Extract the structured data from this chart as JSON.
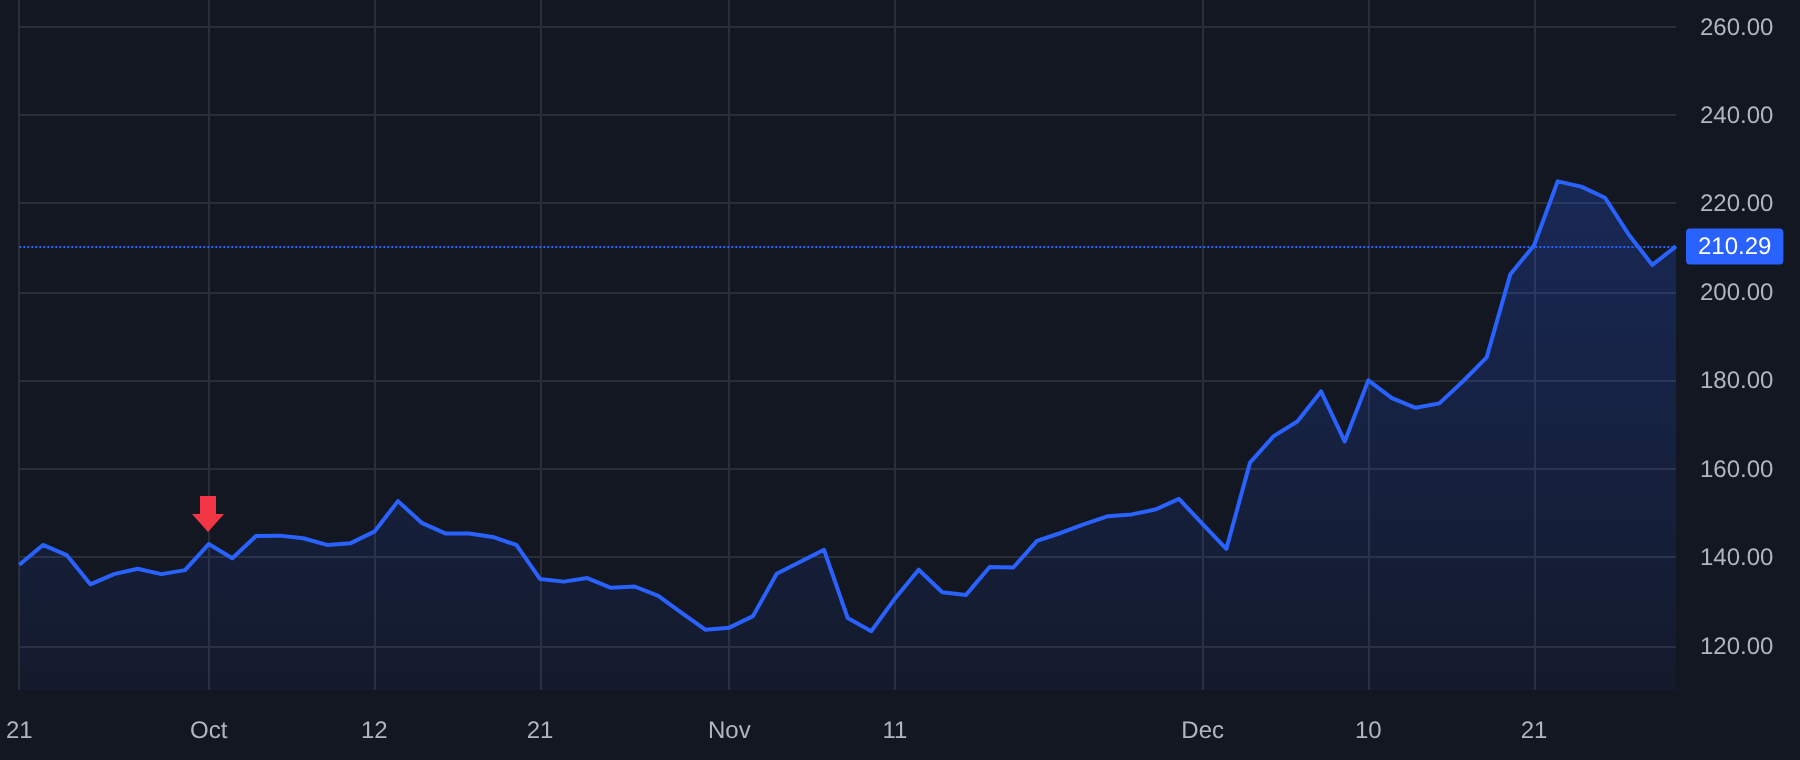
{
  "chart_data": {
    "type": "area",
    "categories": [
      "21",
      null,
      null,
      null,
      null,
      null,
      null,
      null,
      "Oct",
      null,
      null,
      null,
      null,
      null,
      null,
      "12",
      null,
      null,
      null,
      null,
      null,
      null,
      "21",
      null,
      null,
      null,
      null,
      null,
      null,
      null,
      "Nov",
      null,
      null,
      null,
      null,
      null,
      null,
      "11",
      null,
      null,
      null,
      null,
      null,
      null,
      null,
      null,
      null,
      null,
      null,
      null,
      "Dec",
      null,
      null,
      null,
      null,
      null,
      null,
      "10",
      null,
      null,
      null,
      null,
      null,
      null,
      "21",
      null,
      null,
      null,
      null,
      null,
      null
    ],
    "series": [
      {
        "color": "#2962ff",
        "values": [
          138.3,
          142.8,
          140.5,
          133.9,
          136.2,
          137.4,
          136.2,
          137.1,
          143.0,
          139.8,
          144.8,
          144.9,
          144.3,
          142.8,
          143.2,
          145.8,
          152.7,
          147.8,
          145.4,
          145.4,
          144.6,
          142.8,
          135.1,
          134.5,
          135.3,
          133.1,
          133.4,
          131.3,
          127.4,
          123.6,
          124.1,
          126.7,
          136.3,
          139.0,
          141.7,
          126.3,
          123.3,
          130.7,
          137.2,
          132.1,
          131.5,
          137.8,
          137.7,
          143.7,
          145.5,
          147.5,
          149.3,
          149.7,
          150.8,
          153.2,
          147.5,
          141.9,
          161.4,
          167.4,
          170.7,
          177.5,
          166.2,
          180.0,
          176.0,
          173.8,
          174.8,
          179.8,
          185.2,
          204.0,
          210.5,
          225.0,
          223.8,
          221.3,
          213.0,
          206.1,
          210.3
        ]
      }
    ],
    "ylim": [
      110,
      266
    ],
    "yticks": [
      {
        "value": 120,
        "label": "120.00"
      },
      {
        "value": 140,
        "label": "140.00"
      },
      {
        "value": 160,
        "label": "160.00"
      },
      {
        "value": 180,
        "label": "180.00"
      },
      {
        "value": 200,
        "label": "200.00"
      },
      {
        "value": 220,
        "label": "220.00"
      },
      {
        "value": 240,
        "label": "240.00"
      },
      {
        "value": 260,
        "label": "260.00"
      }
    ],
    "ref_lines": [
      {
        "axis": "y",
        "value": 210.29,
        "label": "210.29",
        "color": "#2962ff",
        "line_style": "dotted"
      }
    ],
    "grid": true
  }
}
